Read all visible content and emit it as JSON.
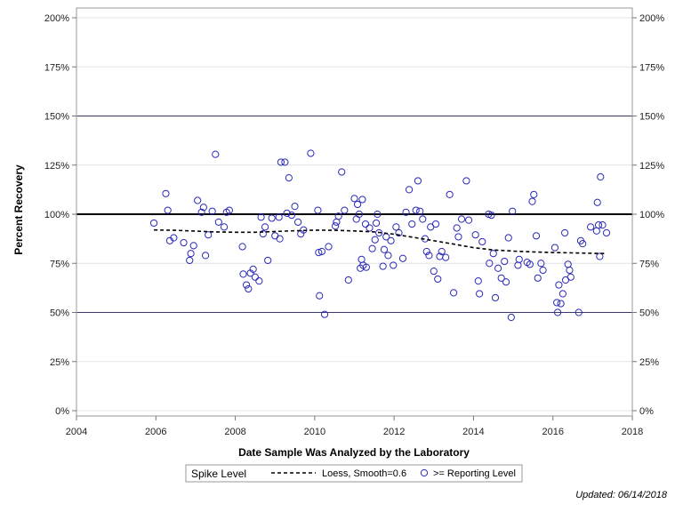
{
  "chart_data": {
    "type": "scatter",
    "xlabel": "Date Sample Was Analyzed by the Laboratory",
    "ylabel": "Percent Recovery",
    "xlim": [
      2004,
      2018
    ],
    "ylim": [
      0,
      200
    ],
    "x_ticks": [
      2004,
      2006,
      2008,
      2010,
      2012,
      2014,
      2016,
      2018
    ],
    "x_tick_labels": [
      "2004",
      "2006",
      "2008",
      "2010",
      "2012",
      "2014",
      "2016",
      "2018"
    ],
    "y_ticks": [
      0,
      25,
      50,
      75,
      100,
      125,
      150,
      175,
      200
    ],
    "y_tick_labels": [
      "0%",
      "25%",
      "50%",
      "75%",
      "100%",
      "125%",
      "150%",
      "175%",
      "200%"
    ],
    "right_axis_labels": true,
    "grid": true,
    "reference_lines": [
      {
        "y": 100,
        "style": "bold"
      },
      {
        "y": 50,
        "style": "thin"
      },
      {
        "y": 150,
        "style": "thin"
      }
    ],
    "legend": {
      "placement": "bottom",
      "title": "Spike Level",
      "entries": [
        {
          "label": "Loess, Smooth=0.6",
          "marker": "dashed-line"
        },
        {
          "label": ">= Reporting Level",
          "marker": "open-circle"
        }
      ]
    },
    "series": [
      {
        "name": ">= Reporting Level",
        "kind": "scatter",
        "color": "#2a2ab8",
        "points": [
          [
            2005.95,
            95.5
          ],
          [
            2006.25,
            110.5
          ],
          [
            2006.3,
            102
          ],
          [
            2006.35,
            86.5
          ],
          [
            2006.45,
            88
          ],
          [
            2006.7,
            85.5
          ],
          [
            2006.85,
            76.5
          ],
          [
            2006.88,
            80
          ],
          [
            2006.95,
            84
          ],
          [
            2007.05,
            107
          ],
          [
            2007.15,
            101
          ],
          [
            2007.2,
            103.5
          ],
          [
            2007.25,
            79
          ],
          [
            2007.32,
            89.5
          ],
          [
            2007.42,
            101.5
          ],
          [
            2007.5,
            130.5
          ],
          [
            2007.58,
            96
          ],
          [
            2007.72,
            93.5
          ],
          [
            2007.78,
            101
          ],
          [
            2007.85,
            102
          ],
          [
            2008.18,
            83.5
          ],
          [
            2008.2,
            69.5
          ],
          [
            2008.28,
            64
          ],
          [
            2008.33,
            62
          ],
          [
            2008.38,
            70
          ],
          [
            2008.45,
            72
          ],
          [
            2008.5,
            68
          ],
          [
            2008.6,
            66
          ],
          [
            2008.65,
            98.5
          ],
          [
            2008.7,
            90
          ],
          [
            2008.75,
            93.5
          ],
          [
            2008.82,
            76.5
          ],
          [
            2008.92,
            98
          ],
          [
            2009.0,
            89
          ],
          [
            2009.1,
            98.5
          ],
          [
            2009.12,
            87.5
          ],
          [
            2009.15,
            126.5
          ],
          [
            2009.25,
            126.5
          ],
          [
            2009.3,
            100.5
          ],
          [
            2009.35,
            118.5
          ],
          [
            2009.42,
            99.5
          ],
          [
            2009.5,
            104
          ],
          [
            2009.58,
            96
          ],
          [
            2009.65,
            90
          ],
          [
            2009.72,
            92
          ],
          [
            2009.9,
            131
          ],
          [
            2010.08,
            102
          ],
          [
            2010.1,
            80.5
          ],
          [
            2010.12,
            58.5
          ],
          [
            2010.18,
            81
          ],
          [
            2010.25,
            49
          ],
          [
            2010.35,
            83.5
          ],
          [
            2010.52,
            94
          ],
          [
            2010.55,
            96
          ],
          [
            2010.6,
            99
          ],
          [
            2010.68,
            121.5
          ],
          [
            2010.75,
            102
          ],
          [
            2010.85,
            66.5
          ],
          [
            2011.0,
            108
          ],
          [
            2011.05,
            97.5
          ],
          [
            2011.08,
            105
          ],
          [
            2011.12,
            100
          ],
          [
            2011.15,
            72.5
          ],
          [
            2011.18,
            77
          ],
          [
            2011.2,
            107.5
          ],
          [
            2011.22,
            74
          ],
          [
            2011.28,
            95
          ],
          [
            2011.3,
            73
          ],
          [
            2011.38,
            93
          ],
          [
            2011.45,
            82.5
          ],
          [
            2011.52,
            87
          ],
          [
            2011.55,
            95.5
          ],
          [
            2011.58,
            100
          ],
          [
            2011.62,
            90.5
          ],
          [
            2011.72,
            73.5
          ],
          [
            2011.75,
            82
          ],
          [
            2011.8,
            88.5
          ],
          [
            2011.85,
            79
          ],
          [
            2011.92,
            86.5
          ],
          [
            2011.98,
            74
          ],
          [
            2012.05,
            93.5
          ],
          [
            2012.12,
            90.5
          ],
          [
            2012.22,
            77.5
          ],
          [
            2012.3,
            101
          ],
          [
            2012.38,
            112.5
          ],
          [
            2012.45,
            95
          ],
          [
            2012.55,
            102
          ],
          [
            2012.6,
            117
          ],
          [
            2012.65,
            101.5
          ],
          [
            2012.72,
            97.5
          ],
          [
            2012.78,
            87.5
          ],
          [
            2012.82,
            81
          ],
          [
            2012.88,
            79
          ],
          [
            2012.92,
            93.5
          ],
          [
            2013.0,
            71
          ],
          [
            2013.05,
            95
          ],
          [
            2013.1,
            67
          ],
          [
            2013.15,
            78.5
          ],
          [
            2013.2,
            81
          ],
          [
            2013.3,
            78
          ],
          [
            2013.4,
            110
          ],
          [
            2013.5,
            60
          ],
          [
            2013.58,
            93
          ],
          [
            2013.62,
            88.5
          ],
          [
            2013.7,
            97.5
          ],
          [
            2013.82,
            117
          ],
          [
            2013.88,
            97
          ],
          [
            2014.05,
            89.5
          ],
          [
            2014.12,
            66
          ],
          [
            2014.15,
            59.5
          ],
          [
            2014.22,
            86
          ],
          [
            2014.38,
            100
          ],
          [
            2014.4,
            75
          ],
          [
            2014.45,
            99.5
          ],
          [
            2014.5,
            80
          ],
          [
            2014.55,
            57.5
          ],
          [
            2014.62,
            72.5
          ],
          [
            2014.7,
            67.5
          ],
          [
            2014.78,
            76
          ],
          [
            2014.82,
            65.5
          ],
          [
            2014.88,
            88
          ],
          [
            2014.95,
            47.5
          ],
          [
            2014.98,
            101.5
          ],
          [
            2015.12,
            74
          ],
          [
            2015.15,
            77
          ],
          [
            2015.35,
            75.5
          ],
          [
            2015.42,
            74.5
          ],
          [
            2015.48,
            106.5
          ],
          [
            2015.52,
            110
          ],
          [
            2015.58,
            89
          ],
          [
            2015.62,
            67.5
          ],
          [
            2015.7,
            75
          ],
          [
            2015.75,
            71.5
          ],
          [
            2016.05,
            83
          ],
          [
            2016.1,
            55
          ],
          [
            2016.12,
            50
          ],
          [
            2016.15,
            64
          ],
          [
            2016.2,
            54.5
          ],
          [
            2016.25,
            59.5
          ],
          [
            2016.3,
            90.5
          ],
          [
            2016.32,
            66.5
          ],
          [
            2016.38,
            74.5
          ],
          [
            2016.42,
            71.5
          ],
          [
            2016.45,
            68
          ],
          [
            2016.65,
            50
          ],
          [
            2016.7,
            86.5
          ],
          [
            2016.75,
            85
          ],
          [
            2016.95,
            93.5
          ],
          [
            2017.1,
            91.5
          ],
          [
            2017.12,
            106
          ],
          [
            2017.15,
            94.5
          ],
          [
            2017.18,
            78.5
          ],
          [
            2017.2,
            119
          ],
          [
            2017.25,
            94.5
          ],
          [
            2017.35,
            90.5
          ]
        ]
      },
      {
        "name": "Loess, Smooth=0.6",
        "kind": "line",
        "style": "dashed",
        "color": "#000000",
        "points": [
          [
            2005.95,
            92
          ],
          [
            2006.5,
            91.8
          ],
          [
            2007.0,
            91.4
          ],
          [
            2007.5,
            91
          ],
          [
            2008.0,
            90.8
          ],
          [
            2008.5,
            90.8
          ],
          [
            2009.0,
            91.2
          ],
          [
            2009.5,
            91.6
          ],
          [
            2010.0,
            91.9
          ],
          [
            2010.5,
            91.8
          ],
          [
            2011.0,
            91.5
          ],
          [
            2011.5,
            91
          ],
          [
            2012.0,
            89.8
          ],
          [
            2012.5,
            88.2
          ],
          [
            2013.0,
            86.5
          ],
          [
            2013.5,
            84.8
          ],
          [
            2014.0,
            83
          ],
          [
            2014.5,
            81.8
          ],
          [
            2015.0,
            81.2
          ],
          [
            2015.5,
            80.8
          ],
          [
            2016.0,
            80.5
          ],
          [
            2016.5,
            80.3
          ],
          [
            2017.0,
            80.1
          ],
          [
            2017.35,
            80
          ]
        ]
      }
    ]
  },
  "footnote": "Updated: 06/14/2018"
}
